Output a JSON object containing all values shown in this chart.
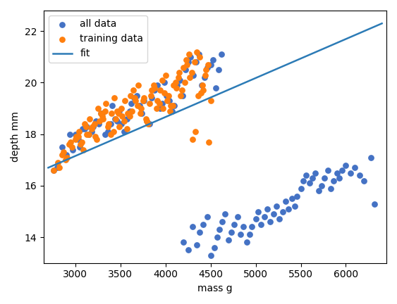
{
  "xlabel": "mass g",
  "ylabel": "depth mm",
  "fit_x": [
    2700,
    6400
  ],
  "fit_y": [
    16.7,
    22.3
  ],
  "fit_color": "#2c7bb6",
  "all_data_color": "#4472c4",
  "training_data_color": "#ff7f0e",
  "xlim": [
    2650,
    6450
  ],
  "ylim": [
    13.0,
    22.8
  ],
  "all_data_mass": [
    2760,
    2800,
    2850,
    2900,
    2940,
    2970,
    3000,
    3030,
    3050,
    3080,
    3100,
    3130,
    3150,
    3180,
    3200,
    3230,
    3260,
    3280,
    3300,
    3330,
    3360,
    3390,
    3410,
    3440,
    3460,
    3490,
    3510,
    3540,
    3570,
    3600,
    3620,
    3650,
    3680,
    3710,
    3740,
    3760,
    3790,
    3820,
    3850,
    3880,
    3910,
    3940,
    3960,
    3990,
    4010,
    4040,
    4070,
    4100,
    4130,
    4160,
    4190,
    4220,
    4250,
    4280,
    4310,
    4340,
    4370,
    4400,
    4430,
    4460,
    4500,
    4530,
    4560,
    4590,
    4620,
    4200,
    4250,
    4300,
    4350,
    4380,
    4420,
    4460,
    4500,
    4540,
    4570,
    4600,
    4630,
    4660,
    4700,
    4730,
    4760,
    4800,
    4830,
    4860,
    4900,
    4930,
    4960,
    5000,
    5030,
    5060,
    5100,
    5130,
    5160,
    5200,
    5230,
    5260,
    5300,
    5330,
    5360,
    5400,
    5430,
    5460,
    5500,
    5530,
    5560,
    5600,
    5630,
    5660,
    5700,
    5730,
    5760,
    5800,
    5830,
    5860,
    5900,
    5930,
    5960,
    6000,
    6050,
    6100,
    6150,
    6200,
    6280,
    6320
  ],
  "all_data_depth": [
    16.6,
    16.7,
    17.5,
    17.2,
    18.0,
    17.4,
    18.0,
    17.8,
    17.5,
    18.2,
    18.2,
    18.3,
    18.0,
    18.1,
    18.3,
    18.5,
    18.4,
    18.8,
    18.8,
    18.0,
    18.1,
    18.4,
    19.1,
    18.6,
    18.5,
    18.9,
    18.4,
    18.1,
    18.6,
    18.9,
    19.2,
    19.4,
    19.5,
    19.1,
    18.8,
    19.3,
    18.5,
    18.4,
    19.4,
    19.7,
    19.9,
    19.0,
    19.2,
    20.0,
    19.5,
    19.3,
    18.9,
    19.1,
    19.9,
    20.1,
    19.5,
    20.5,
    20.8,
    21.0,
    20.3,
    20.8,
    21.1,
    19.9,
    20.2,
    20.6,
    20.7,
    20.9,
    19.8,
    20.5,
    21.1,
    13.8,
    13.5,
    14.4,
    13.7,
    14.2,
    14.5,
    14.8,
    13.3,
    13.6,
    14.0,
    14.3,
    14.6,
    14.9,
    13.9,
    14.2,
    14.5,
    14.8,
    14.1,
    14.4,
    13.8,
    14.1,
    14.4,
    14.7,
    15.0,
    14.5,
    14.8,
    15.1,
    14.6,
    14.9,
    15.2,
    14.7,
    15.0,
    15.4,
    15.1,
    15.5,
    15.2,
    15.6,
    15.9,
    16.2,
    16.4,
    16.1,
    16.3,
    16.5,
    15.8,
    16.0,
    16.3,
    16.6,
    15.9,
    16.2,
    16.5,
    16.3,
    16.6,
    16.8,
    16.5,
    16.7,
    16.4,
    16.2,
    17.1,
    15.3
  ],
  "training_data_mass": [
    2760,
    2810,
    2850,
    2890,
    2930,
    2960,
    3000,
    3030,
    3060,
    3090,
    3120,
    3150,
    3180,
    3210,
    3240,
    3270,
    3300,
    3330,
    3360,
    3390,
    3420,
    3450,
    3480,
    3510,
    3540,
    3570,
    3600,
    3630,
    3660,
    3690,
    3720,
    3750,
    3780,
    3810,
    3840,
    3870,
    3900,
    3930,
    3960,
    3990,
    4020,
    4050,
    4080,
    4110,
    4140,
    4170,
    4200,
    4230,
    4260,
    4290,
    4320,
    4350,
    4380,
    4410,
    4440,
    4470,
    4500,
    2820,
    2870,
    2910,
    2950,
    3010,
    3040,
    3070,
    3100,
    3130,
    3160,
    3190,
    3220,
    3250,
    3280,
    3310,
    3340,
    3370,
    3400,
    3430,
    3460,
    3490,
    3520,
    3550,
    3580,
    3610,
    3640,
    3670,
    3700,
    3730,
    3760,
    3790,
    3820,
    3850,
    3880,
    3910,
    3940,
    3970,
    4000,
    4030,
    4060,
    4090,
    4120,
    4150,
    4180,
    4210,
    4240,
    4270,
    4300,
    4330,
    4360,
    4390,
    4420,
    4450,
    4480
  ],
  "training_data_depth": [
    16.6,
    16.9,
    17.2,
    17.0,
    17.6,
    17.5,
    17.8,
    17.9,
    17.6,
    17.4,
    18.3,
    18.0,
    18.2,
    18.4,
    17.8,
    18.5,
    18.7,
    18.9,
    18.3,
    18.0,
    18.1,
    18.6,
    18.8,
    19.0,
    18.5,
    18.2,
    18.7,
    18.9,
    19.4,
    19.1,
    18.8,
    19.3,
    18.6,
    18.4,
    19.5,
    19.9,
    19.0,
    19.2,
    20.1,
    19.6,
    19.3,
    18.9,
    19.1,
    20.0,
    20.2,
    19.5,
    20.6,
    20.9,
    21.1,
    20.4,
    20.8,
    21.2,
    21.0,
    19.9,
    20.3,
    20.7,
    19.3,
    16.7,
    17.3,
    17.1,
    17.7,
    17.9,
    18.1,
    17.7,
    18.4,
    18.0,
    18.6,
    18.3,
    17.9,
    19.0,
    18.8,
    18.6,
    19.2,
    18.4,
    18.8,
    19.4,
    18.9,
    18.3,
    18.7,
    19.3,
    18.8,
    19.5,
    19.7,
    19.3,
    19.9,
    19.0,
    19.4,
    18.5,
    19.2,
    19.7,
    19.8,
    19.3,
    19.7,
    19.0,
    20.3,
    19.5,
    19.1,
    19.9,
    19.8,
    20.4,
    19.7,
    20.0,
    20.7,
    20.2,
    17.8,
    18.1,
    19.5,
    19.6,
    19.7,
    20.5,
    17.7
  ]
}
